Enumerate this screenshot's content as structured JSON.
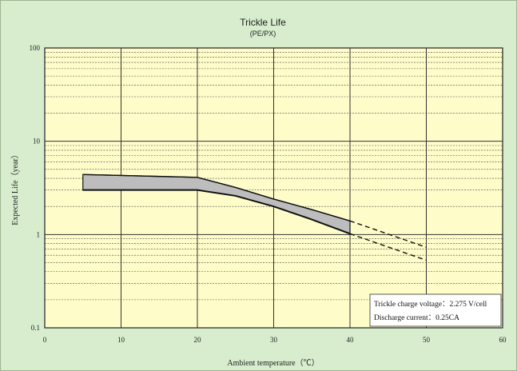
{
  "chart_data": {
    "type": "area",
    "title": "Trickle Life",
    "subtitle": "(PE/PX)",
    "xlabel": "Ambient temperature（℃）",
    "ylabel": "Expected Life（year）",
    "x_ticks": [
      "0",
      "10",
      "20",
      "30",
      "40",
      "50",
      "60"
    ],
    "y_ticks": [
      "0.1",
      "1",
      "10",
      "100"
    ],
    "xlim": [
      0,
      60
    ],
    "ylim": [
      0.1,
      100
    ],
    "y_scale": "log",
    "grid": true,
    "series": [
      {
        "x": [
          5,
          10,
          15,
          20,
          25,
          30,
          35,
          40
        ],
        "values": [
          4.4,
          4.3,
          4.2,
          4.1,
          3.2,
          2.4,
          1.85,
          1.4
        ]
      },
      {
        "x": [
          5,
          10,
          15,
          20,
          25,
          30,
          35,
          40
        ],
        "values": [
          3.0,
          3.0,
          3.0,
          3.0,
          2.6,
          2.0,
          1.45,
          1.02
        ]
      }
    ],
    "extrapolation": [
      {
        "x": [
          40,
          50
        ],
        "values": [
          1.4,
          0.73
        ]
      },
      {
        "x": [
          40,
          50
        ],
        "values": [
          1.02,
          0.53
        ]
      }
    ],
    "annotation": [
      "Trickle charge voltage：2.275 V/cell",
      "Discharge current：0.25CA"
    ]
  }
}
